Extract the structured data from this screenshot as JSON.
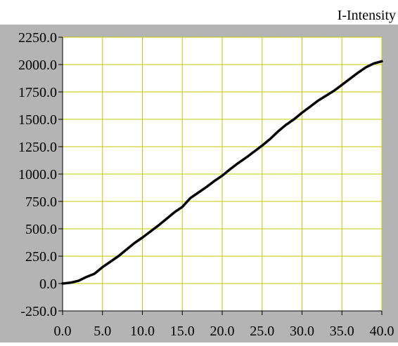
{
  "chart_data": {
    "type": "line",
    "title": "I-Intensity",
    "xlabel": "",
    "ylabel": "",
    "xlim": [
      0,
      40
    ],
    "ylim": [
      -250,
      2250
    ],
    "x_ticks": [
      0,
      5,
      10,
      15,
      20,
      25,
      30,
      35,
      40
    ],
    "y_ticks": [
      -250,
      0,
      250,
      500,
      750,
      1000,
      1250,
      1500,
      1750,
      2000,
      2250
    ],
    "x_tick_labels": [
      "0.0",
      "5.0",
      "10.0",
      "15.0",
      "20.0",
      "25.0",
      "30.0",
      "35.0",
      "40.0"
    ],
    "y_tick_labels": [
      "-250.0",
      "0.0",
      "250.0",
      "500.0",
      "750.0",
      "1000.0",
      "1250.0",
      "1500.0",
      "1750.0",
      "2000.0",
      "2250.0"
    ],
    "grid": true,
    "colors": {
      "frame": "#b4b4b4",
      "plot_background": "#ffffff",
      "grid": "#c8c800",
      "line": "#000000"
    },
    "series": [
      {
        "x": [
          0,
          1,
          2,
          3,
          4,
          5,
          6,
          7,
          8,
          9,
          10,
          11,
          12,
          13,
          14,
          15,
          16,
          17,
          18,
          19,
          20,
          21,
          22,
          23,
          24,
          25,
          26,
          27,
          28,
          29,
          30,
          31,
          32,
          33,
          34,
          35,
          36,
          37,
          38,
          39,
          40
        ],
        "y": [
          0,
          8,
          25,
          60,
          90,
          150,
          200,
          250,
          310,
          370,
          420,
          475,
          530,
          590,
          650,
          700,
          780,
          830,
          880,
          935,
          985,
          1045,
          1100,
          1150,
          1205,
          1260,
          1320,
          1390,
          1450,
          1500,
          1560,
          1615,
          1670,
          1715,
          1760,
          1815,
          1870,
          1925,
          1975,
          2010,
          2030
        ]
      }
    ]
  }
}
